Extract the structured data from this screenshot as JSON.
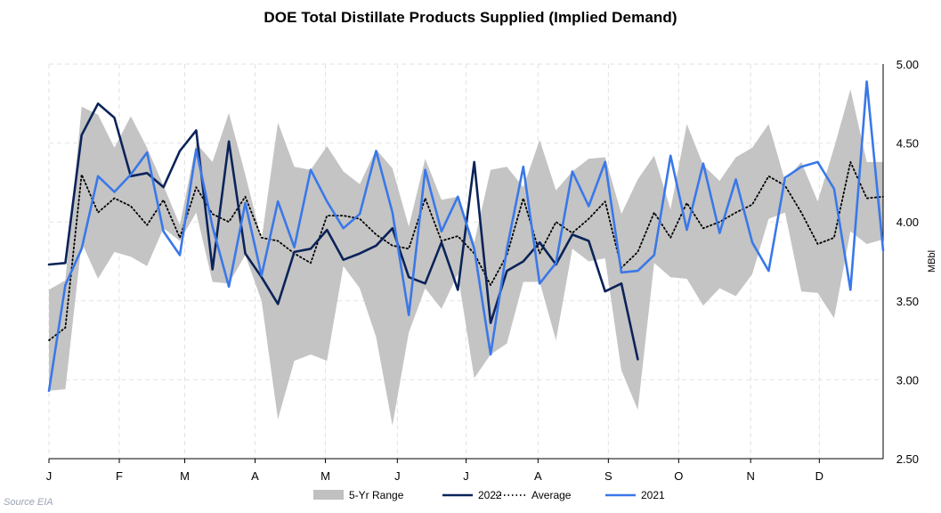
{
  "source": "Source EIA",
  "chart_data": {
    "type": "line",
    "title": "DOE Total Distillate Products Supplied (Implied Demand)",
    "ylabel": "MBbl",
    "ylim": [
      2.5,
      5.0
    ],
    "yticks": [
      2.5,
      3.0,
      3.5,
      4.0,
      4.5,
      5.0
    ],
    "ytick_labels": [
      "2.50",
      "3.00",
      "3.50",
      "4.00",
      "4.50",
      "5.00"
    ],
    "xticks": [
      {
        "week": 1,
        "label": "J"
      },
      {
        "week": 5.3,
        "label": "F"
      },
      {
        "week": 9.3,
        "label": "M"
      },
      {
        "week": 13.6,
        "label": "A"
      },
      {
        "week": 17.9,
        "label": "M"
      },
      {
        "week": 22.3,
        "label": "J"
      },
      {
        "week": 26.5,
        "label": "J"
      },
      {
        "week": 30.9,
        "label": "A"
      },
      {
        "week": 35.2,
        "label": "S"
      },
      {
        "week": 39.5,
        "label": "O"
      },
      {
        "week": 43.9,
        "label": "N"
      },
      {
        "week": 48.1,
        "label": "D"
      }
    ],
    "grid": true,
    "legend_position": "bottom",
    "weeks": [
      1,
      2,
      3,
      4,
      5,
      6,
      7,
      8,
      9,
      10,
      11,
      12,
      13,
      14,
      15,
      16,
      17,
      18,
      19,
      20,
      21,
      22,
      23,
      24,
      25,
      26,
      27,
      28,
      29,
      30,
      31,
      32,
      33,
      34,
      35,
      36,
      37,
      38,
      39,
      40,
      41,
      42,
      43,
      44,
      45,
      46,
      47,
      48,
      49,
      50,
      51,
      52
    ],
    "range_high": [
      3.57,
      3.63,
      4.73,
      4.68,
      4.47,
      4.67,
      4.47,
      4.23,
      3.98,
      4.5,
      4.38,
      4.69,
      4.3,
      3.89,
      4.63,
      4.35,
      4.33,
      4.48,
      4.32,
      4.24,
      4.46,
      4.34,
      3.97,
      4.4,
      4.14,
      4.16,
      3.87,
      4.33,
      4.35,
      4.22,
      4.52,
      4.2,
      4.32,
      4.4,
      4.41,
      4.05,
      4.27,
      4.42,
      4.08,
      4.62,
      4.36,
      4.26,
      4.41,
      4.47,
      4.62,
      4.26,
      4.38,
      4.13,
      4.47,
      4.84,
      4.38,
      4.38
    ],
    "range_low": [
      2.93,
      2.94,
      3.87,
      3.64,
      3.81,
      3.78,
      3.72,
      3.96,
      3.88,
      4.06,
      3.62,
      3.61,
      3.79,
      3.5,
      2.75,
      3.12,
      3.16,
      3.12,
      3.72,
      3.58,
      3.27,
      2.71,
      3.3,
      3.58,
      3.45,
      3.67,
      3.01,
      3.16,
      3.23,
      3.62,
      3.62,
      3.25,
      3.83,
      3.75,
      3.77,
      3.06,
      2.81,
      3.74,
      3.65,
      3.64,
      3.47,
      3.58,
      3.53,
      3.67,
      4.02,
      4.06,
      3.56,
      3.55,
      3.39,
      3.94,
      3.86,
      3.89
    ],
    "series": [
      {
        "name": "2022",
        "color": "#0b2359",
        "style": "solid",
        "values": [
          3.73,
          3.74,
          4.55,
          4.75,
          4.66,
          4.29,
          4.31,
          4.22,
          4.45,
          4.58,
          3.7,
          4.51,
          3.8,
          3.65,
          3.48,
          3.81,
          3.83,
          3.95,
          3.76,
          3.8,
          3.85,
          3.96,
          3.65,
          3.61,
          3.87,
          3.57,
          4.38,
          3.36,
          3.69,
          3.75,
          3.87,
          3.73,
          3.92,
          3.88,
          3.56,
          3.61,
          3.13,
          null,
          null,
          null,
          null,
          null,
          null,
          null,
          null,
          null,
          null,
          null,
          null,
          null,
          null,
          null
        ]
      },
      {
        "name": "Average",
        "color": "#000000",
        "style": "dotted",
        "values": [
          3.25,
          3.33,
          4.3,
          4.06,
          4.15,
          4.1,
          3.98,
          4.14,
          3.9,
          4.22,
          4.05,
          4.0,
          4.16,
          3.9,
          3.88,
          3.8,
          3.74,
          4.04,
          4.04,
          4.02,
          3.92,
          3.85,
          3.83,
          4.15,
          3.88,
          3.91,
          3.8,
          3.6,
          3.79,
          4.15,
          3.8,
          4.0,
          3.93,
          4.02,
          4.13,
          3.71,
          3.81,
          4.06,
          3.9,
          4.12,
          3.96,
          4.0,
          4.06,
          4.11,
          4.29,
          4.23,
          4.06,
          3.86,
          3.9,
          4.38,
          4.15,
          4.16
        ]
      },
      {
        "name": "2021",
        "color": "#3a78e8",
        "style": "solid",
        "values": [
          2.93,
          3.6,
          3.83,
          4.29,
          4.19,
          4.3,
          4.44,
          3.94,
          3.79,
          4.46,
          3.97,
          3.59,
          4.12,
          3.66,
          4.13,
          3.84,
          4.33,
          4.13,
          3.96,
          4.05,
          4.45,
          4.06,
          3.41,
          4.33,
          3.94,
          4.16,
          3.83,
          3.16,
          3.83,
          4.35,
          3.61,
          3.74,
          4.32,
          4.1,
          4.38,
          3.68,
          3.69,
          3.79,
          4.42,
          3.95,
          4.37,
          3.93,
          4.27,
          3.87,
          3.69,
          4.28,
          4.35,
          4.38,
          4.21,
          3.57,
          4.89,
          3.82
        ]
      }
    ],
    "legend": [
      {
        "label": "5-Yr Range",
        "kind": "band",
        "color": "#c0c0c0"
      },
      {
        "label": "2022",
        "kind": "solid",
        "color": "#0b2359"
      },
      {
        "label": "Average",
        "kind": "dotted",
        "color": "#000000"
      },
      {
        "label": "2021",
        "kind": "solid",
        "color": "#3a78e8"
      }
    ]
  }
}
